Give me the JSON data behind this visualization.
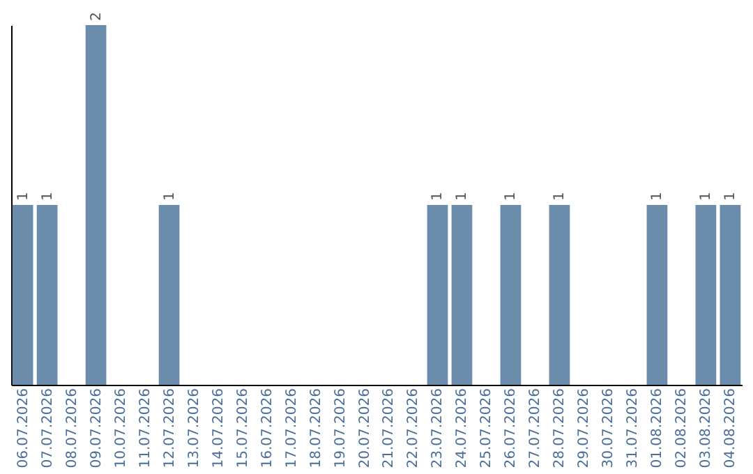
{
  "chart_data": {
    "type": "bar",
    "categories": [
      "06.07.2026",
      "07.07.2026",
      "08.07.2026",
      "09.07.2026",
      "10.07.2026",
      "11.07.2026",
      "12.07.2026",
      "13.07.2026",
      "14.07.2026",
      "15.07.2026",
      "16.07.2026",
      "17.07.2026",
      "18.07.2026",
      "19.07.2026",
      "20.07.2026",
      "21.07.2026",
      "22.07.2026",
      "23.07.2026",
      "24.07.2026",
      "25.07.2026",
      "26.07.2026",
      "27.07.2026",
      "28.07.2026",
      "29.07.2026",
      "30.07.2026",
      "31.07.2026",
      "01.08.2026",
      "02.08.2026",
      "03.08.2026",
      "04.08.2026"
    ],
    "values": [
      1,
      1,
      0,
      2,
      0,
      0,
      1,
      0,
      0,
      0,
      0,
      0,
      0,
      0,
      0,
      0,
      0,
      1,
      1,
      0,
      1,
      0,
      1,
      0,
      0,
      0,
      1,
      0,
      1,
      1
    ],
    "value_labels": [
      "1",
      "1",
      null,
      "2",
      null,
      null,
      "1",
      null,
      null,
      null,
      null,
      null,
      null,
      null,
      null,
      null,
      null,
      "1",
      "1",
      null,
      "1",
      null,
      "1",
      null,
      null,
      null,
      "1",
      null,
      "1",
      "1"
    ],
    "color": "#6b8cab",
    "grid": false,
    "tick_labels": "x"
  }
}
